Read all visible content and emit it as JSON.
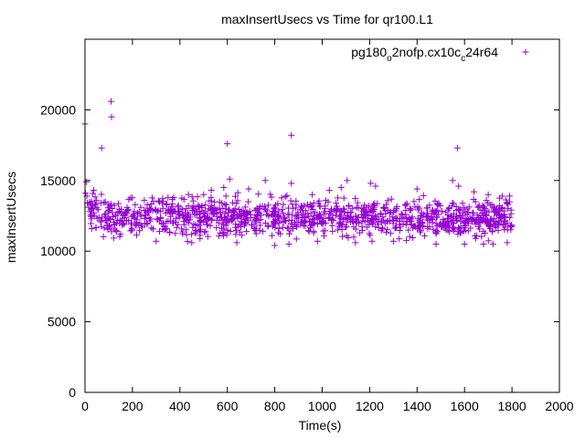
{
  "chart_data": {
    "type": "scatter",
    "title": "maxInsertUsecs vs Time for qr100.L1",
    "xlabel": "Time(s)",
    "ylabel": "maxInsertUsecs",
    "xlim": [
      0,
      2000
    ],
    "ylim": [
      0,
      25000
    ],
    "x_ticks": [
      0,
      200,
      400,
      600,
      800,
      1000,
      1200,
      1400,
      1600,
      1800,
      2000
    ],
    "y_ticks": [
      0,
      5000,
      10000,
      15000,
      20000
    ],
    "x_tick_labels": [
      "0",
      "200",
      "400",
      "600",
      "800",
      "1000",
      "1200",
      "1400",
      "1600",
      "1800",
      "2000"
    ],
    "y_tick_labels": [
      "0",
      "5000",
      "10000",
      "15000",
      "20000"
    ],
    "grid": false,
    "legend_position": "top-right",
    "series": [
      {
        "name": "pg180_o2nofp.cx10c_c24r64",
        "legend_parts": {
          "base": "pg180",
          "sub1": "o",
          "mid": "2nofp.cx10c",
          "sub2": "c",
          "tail": "24r64"
        },
        "color": "#9400D3",
        "marker": "plus",
        "points": [
          [
            0,
            19000
          ],
          [
            2,
            14100
          ],
          [
            5,
            14900
          ],
          [
            8,
            13900
          ],
          [
            10,
            13400
          ],
          [
            15,
            13100
          ],
          [
            20,
            12800
          ],
          [
            70,
            17300
          ],
          [
            110,
            20600
          ],
          [
            112,
            19500
          ],
          [
            600,
            17600
          ],
          [
            870,
            18200
          ],
          [
            1570,
            17300
          ],
          [
            150,
            11200
          ],
          [
            300,
            10700
          ],
          [
            450,
            10600
          ],
          [
            640,
            10600
          ],
          [
            800,
            10400
          ],
          [
            860,
            10500
          ],
          [
            980,
            10700
          ],
          [
            1140,
            10600
          ],
          [
            1210,
            10700
          ],
          [
            1300,
            10700
          ],
          [
            1480,
            10500
          ],
          [
            1600,
            10500
          ],
          [
            1680,
            10500
          ],
          [
            1720,
            10500
          ],
          [
            1780,
            10600
          ],
          [
            250,
            13600
          ],
          [
            350,
            13800
          ],
          [
            500,
            14000
          ],
          [
            585,
            14500
          ],
          [
            610,
            15100
          ],
          [
            690,
            14400
          ],
          [
            760,
            15000
          ],
          [
            870,
            14800
          ],
          [
            1030,
            14300
          ],
          [
            1080,
            14500
          ],
          [
            1105,
            15000
          ],
          [
            1205,
            14800
          ],
          [
            1225,
            14600
          ],
          [
            1400,
            14400
          ],
          [
            1550,
            15000
          ],
          [
            1575,
            14600
          ],
          [
            1640,
            14200
          ],
          [
            1700,
            14000
          ],
          [
            1790,
            13900
          ]
        ],
        "dense_band": {
          "x_range": [
            20,
            1800
          ],
          "y_center": 12400,
          "y_spread": 650,
          "count": 1180
        }
      }
    ]
  }
}
